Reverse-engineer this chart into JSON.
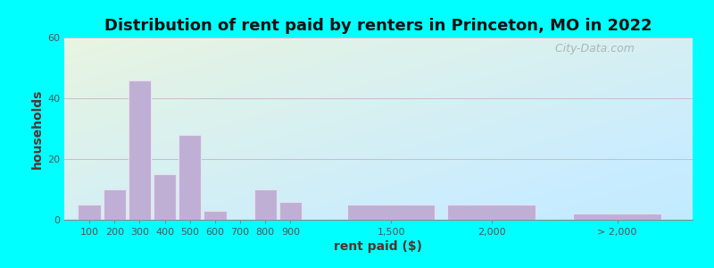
{
  "title": "Distribution of rent paid by renters in Princeton, MO in 2022",
  "xlabel": "rent paid ($)",
  "ylabel": "households",
  "bar_color": "#c0afd4",
  "bar_edgecolor": "#e8e0f0",
  "background_outer": "#00ffff",
  "ylim": [
    0,
    60
  ],
  "yticks": [
    0,
    20,
    40,
    60
  ],
  "tick_labels": [
    "100",
    "200",
    "300",
    "400",
    "500",
    "600",
    "700",
    "800",
    "900",
    "1,500",
    "2,000",
    "> 2,000"
  ],
  "values": [
    5,
    10,
    46,
    15,
    28,
    3,
    0,
    10,
    6,
    5,
    5,
    2
  ],
  "x_positions": [
    0,
    1,
    2,
    3,
    4,
    5,
    6,
    7,
    8,
    12,
    16,
    21
  ],
  "bar_widths": [
    0.9,
    0.9,
    0.9,
    0.9,
    0.9,
    0.9,
    0.9,
    0.9,
    0.9,
    3.5,
    3.5,
    3.5
  ],
  "watermark": "  City-Data.com",
  "title_fontsize": 13,
  "axis_label_fontsize": 10,
  "tick_fontsize": 8
}
